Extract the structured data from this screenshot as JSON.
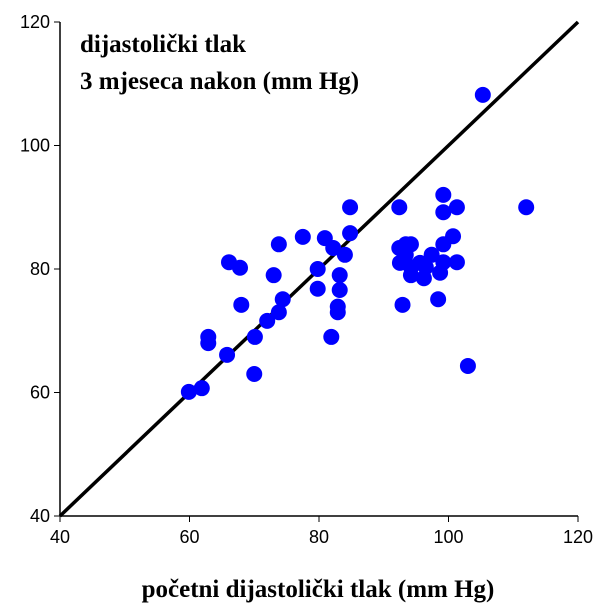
{
  "chart_data": {
    "type": "scatter",
    "title_lines": [
      "dijastolički tlak",
      "3 mjeseca nakon (mm Hg)"
    ],
    "x_label": "početni dijastolički tlak (mm Hg)",
    "xlim": [
      40,
      120
    ],
    "ylim": [
      40,
      120
    ],
    "xticks": [
      40,
      60,
      80,
      100,
      120
    ],
    "yticks": [
      40,
      60,
      80,
      100,
      120
    ],
    "grid": false,
    "reference_line": {
      "x": [
        40,
        120
      ],
      "y": [
        40,
        120
      ],
      "color": "#000000"
    },
    "series": [
      {
        "color": "#0000ff",
        "x": [
          105.3,
          112,
          103,
          99.2,
          99.2,
          101.3,
          100.7,
          101.3,
          99.2,
          99.2,
          98.7,
          98.4,
          84.8,
          92.4,
          84.8,
          84,
          80.9,
          82.2,
          77.5,
          73.8,
          66.1,
          67.8,
          79.8,
          79.8,
          83.2,
          83.2,
          82.9,
          82.9,
          81.9,
          73,
          74.4,
          73.8,
          72,
          68,
          62.9,
          62.9,
          65.8,
          70.1,
          70,
          59.9,
          61.9,
          93.4,
          94.2,
          93.4,
          92.5,
          94.2,
          94.2,
          95.6,
          97.4,
          96.5,
          92.9,
          92.4,
          96.2
        ],
        "y": [
          108.2,
          90,
          64.3,
          92,
          89.2,
          90,
          85.3,
          81.1,
          84,
          81.1,
          79.4,
          75.1,
          90,
          90,
          85.8,
          82.3,
          85,
          83.4,
          85.2,
          84,
          81.1,
          80.2,
          80,
          76.8,
          79,
          76.6,
          73.9,
          73,
          69,
          79,
          75.1,
          73,
          71.6,
          74.2,
          69,
          68,
          66.1,
          69,
          63,
          60.1,
          60.7,
          84,
          84,
          82.3,
          81,
          80.3,
          79,
          81,
          82.3,
          80.3,
          74.2,
          83.4,
          78.5
        ]
      }
    ]
  }
}
